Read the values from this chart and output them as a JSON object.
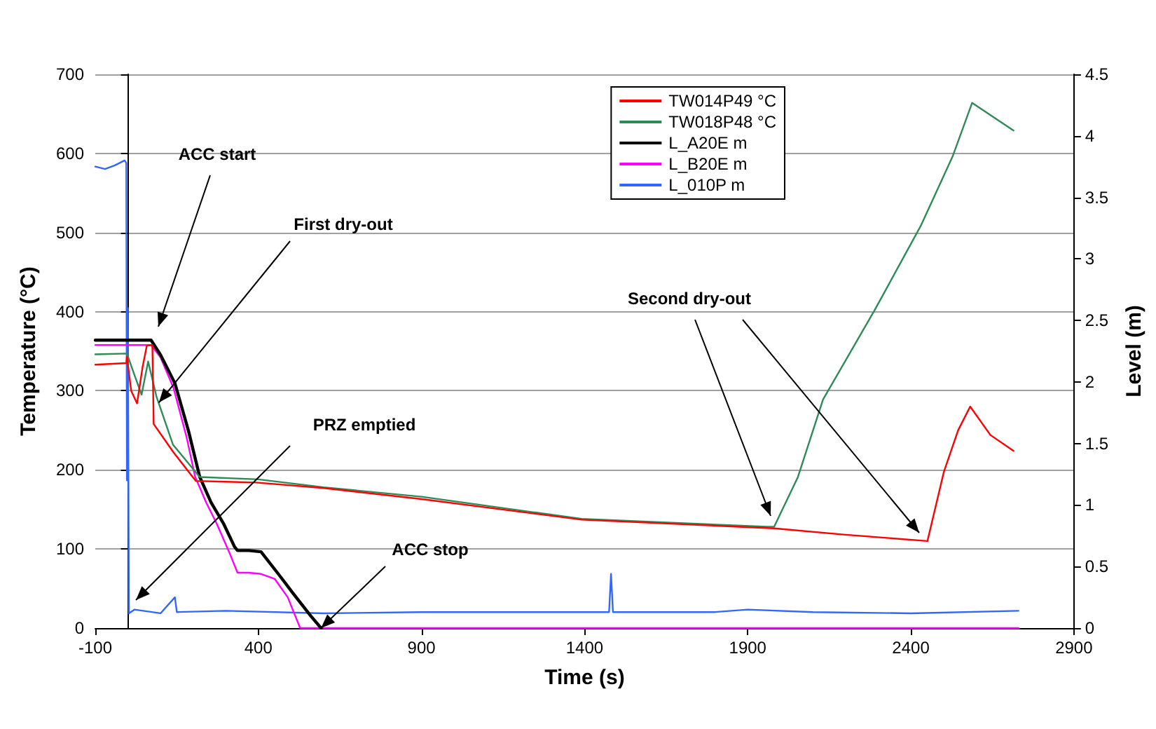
{
  "chart_data": {
    "type": "line",
    "xlabel": "Time (s)",
    "ylabel": "Temperature (°C)",
    "y2label": "Level (m)",
    "xlim": [
      -100,
      2900
    ],
    "xticks": [
      -100,
      400,
      900,
      1400,
      1900,
      2400,
      2900
    ],
    "ylim": [
      0,
      700
    ],
    "yticks": [
      0,
      100,
      200,
      300,
      400,
      500,
      600,
      700
    ],
    "y2lim": [
      0,
      4.5
    ],
    "y2ticks": [
      0,
      0.5,
      1,
      1.5,
      2,
      2.5,
      3,
      3.5,
      4,
      4.5
    ],
    "grid": "y",
    "legend": "top right",
    "marker": "none",
    "line_style": "solid",
    "series": [
      {
        "name": "TW014P49 °C",
        "color": "#ff0000",
        "x": [
          -100,
          -5,
          -3,
          10,
          28,
          45,
          58,
          75,
          79,
          140,
          208,
          300,
          393,
          600,
          900,
          1391,
          1981,
          2200,
          2451,
          2501,
          2545,
          2582,
          2644,
          2715
        ],
        "values": [
          333,
          335,
          343,
          300,
          284,
          330,
          357,
          358,
          258,
          222,
          186,
          185,
          184,
          177,
          163,
          137,
          126,
          118,
          110,
          197,
          250,
          280,
          244,
          224
        ]
      },
      {
        "name": "TW018P48 °C",
        "color": "#2e8b57",
        "x": [
          -100,
          -3,
          20,
          42,
          62,
          88,
          138,
          220,
          400,
          600,
          900,
          1391,
          1960,
          1981,
          2054,
          2131,
          2288,
          2430,
          2528,
          2588,
          2715
        ],
        "values": [
          346,
          347,
          320,
          295,
          337,
          292,
          232,
          191,
          188,
          178,
          166,
          138,
          128,
          128,
          191,
          289,
          401,
          508,
          596,
          664,
          629
        ]
      },
      {
        "name": "L_A20E m",
        "color": "#000000",
        "axis": "y2",
        "x": [
          -100,
          71,
          100,
          144,
          186,
          220,
          255,
          293,
          327,
          336,
          370,
          408,
          464,
          507,
          560,
          592
        ],
        "values": [
          2.34,
          2.34,
          2.22,
          1.99,
          1.6,
          1.23,
          1.02,
          0.85,
          0.66,
          0.63,
          0.63,
          0.62,
          0.43,
          0.28,
          0.1,
          0
        ]
      },
      {
        "name": "L_B20E m",
        "color": "#ff00ff",
        "axis": "y2",
        "x": [
          -100,
          71,
          100,
          140,
          180,
          206,
          240,
          272,
          310,
          336,
          370,
          408,
          450,
          490,
          528,
          2730
        ],
        "values": [
          2.3,
          2.3,
          2.2,
          1.95,
          1.55,
          1.23,
          1.02,
          0.85,
          0.62,
          0.45,
          0.45,
          0.44,
          0.4,
          0.25,
          0,
          0
        ]
      },
      {
        "name": "L_010P m",
        "color": "#3366ff",
        "axis": "y2",
        "x": [
          -100,
          -70,
          -40,
          -10,
          -5,
          -3,
          0,
          3,
          20,
          100,
          144,
          150,
          300,
          600,
          900,
          1200,
          1475,
          1481,
          1487,
          1800,
          1900,
          2100,
          2400,
          2730
        ],
        "values": [
          3.75,
          3.73,
          3.76,
          3.8,
          3.78,
          1.2,
          2.6,
          0.12,
          0.15,
          0.12,
          0.25,
          0.13,
          0.14,
          0.12,
          0.13,
          0.13,
          0.13,
          0.44,
          0.13,
          0.13,
          0.15,
          0.13,
          0.12,
          0.14
        ]
      }
    ],
    "annotations": [
      "ACC start",
      {
        "text": "First dry-out",
        "x": 95,
        "y": 285
      },
      "PRZ emptied",
      {
        "text": "ACC stop",
        "x": 592,
        "y": 0
      },
      "Second dry-out"
    ]
  }
}
